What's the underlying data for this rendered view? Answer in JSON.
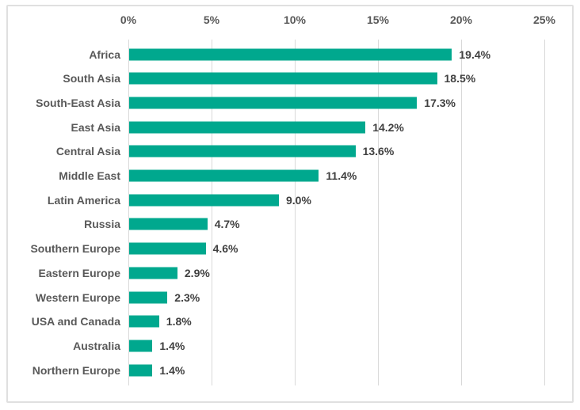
{
  "chart_data": {
    "type": "bar",
    "orientation": "horizontal",
    "title": "",
    "xlabel": "",
    "ylabel": "",
    "categories": [
      "Africa",
      "South Asia",
      "South-East Asia",
      "East Asia",
      "Central Asia",
      "Middle East",
      "Latin America",
      "Russia",
      "Southern Europe",
      "Eastern Europe",
      "Western Europe",
      "USA and Canada",
      "Australia",
      "Northern Europe"
    ],
    "values": [
      19.4,
      18.5,
      17.3,
      14.2,
      13.6,
      11.4,
      9.0,
      4.7,
      4.6,
      2.9,
      2.3,
      1.8,
      1.4,
      1.4
    ],
    "value_labels": [
      "19.4%",
      "18.5%",
      "17.3%",
      "14.2%",
      "13.6%",
      "11.4%",
      "9.0%",
      "4.7%",
      "4.6%",
      "2.9%",
      "2.3%",
      "1.8%",
      "1.4%",
      "1.4%"
    ],
    "x_axis": {
      "position": "top",
      "range": [
        0,
        25
      ],
      "tick_values": [
        0,
        5,
        10,
        15,
        20,
        25
      ],
      "tick_labels": [
        "0%",
        "5%",
        "10%",
        "15%",
        "20%",
        "25%"
      ]
    },
    "grid": true,
    "legend": false,
    "colors": {
      "bar": "#00a88e",
      "gridline": "#d9d9d9",
      "frame_border": "#e0e0e0",
      "axis_text": "#595959",
      "category_text": "#595959",
      "value_text": "#404040",
      "background": "#ffffff"
    }
  }
}
